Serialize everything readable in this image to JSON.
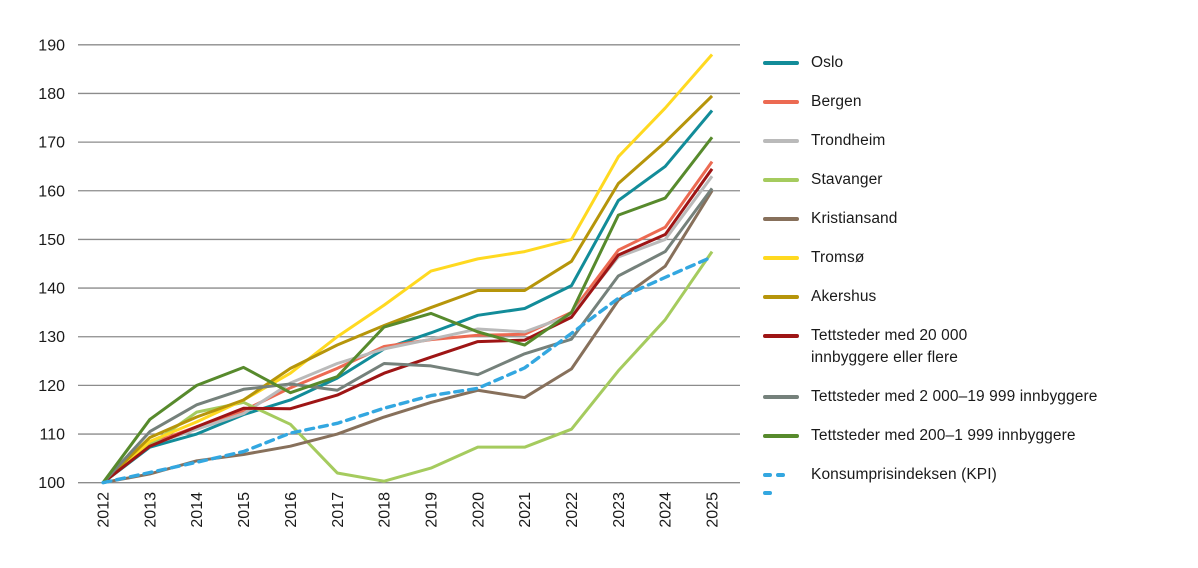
{
  "chart_data": {
    "type": "line",
    "title": "",
    "xlabel": "",
    "ylabel": "",
    "x_labels": [
      "2012",
      "2013",
      "2014",
      "2015",
      "2016",
      "2017",
      "2018",
      "2019",
      "2020",
      "2021",
      "2022",
      "2023",
      "2024",
      "2025"
    ],
    "ylim": [
      100,
      190
    ],
    "y_ticks": [
      "100",
      "110",
      "120",
      "130",
      "140",
      "150",
      "160",
      "170",
      "180",
      "190"
    ],
    "grid": "horizontal-only",
    "gridline_color": "#8c8c8c",
    "legend_position": "right",
    "series": [
      {
        "name": "Oslo",
        "color": "#128c99",
        "dashed": false,
        "label_lines": [
          "Oslo"
        ],
        "values": [
          100,
          107.3,
          110,
          114,
          117,
          121.5,
          127.5,
          130.8,
          134.4,
          135.8,
          140.5,
          158,
          165,
          176.5
        ]
      },
      {
        "name": "Bergen",
        "color": "#ec6a52",
        "dashed": false,
        "label_lines": [
          "Bergen"
        ],
        "values": [
          100,
          108,
          111.5,
          114.8,
          119.5,
          123.5,
          128,
          129.4,
          130.3,
          130.5,
          135,
          147.8,
          152.5,
          166
        ]
      },
      {
        "name": "Trondheim",
        "color": "#bababa",
        "dashed": false,
        "label_lines": [
          "Trondheim"
        ],
        "values": [
          100,
          107.7,
          111,
          114.2,
          120.5,
          124.5,
          127.5,
          129.5,
          131.6,
          131,
          134.5,
          146.4,
          150,
          163
        ]
      },
      {
        "name": "Stavanger",
        "color": "#a5cb5e",
        "dashed": false,
        "label_lines": [
          "Stavanger"
        ],
        "values": [
          100,
          107.7,
          114.5,
          116.5,
          112,
          102,
          100.3,
          103,
          107.3,
          107.3,
          111,
          123,
          133.5,
          147.5
        ]
      },
      {
        "name": "Kristiansand",
        "color": "#87705b",
        "dashed": false,
        "label_lines": [
          "Kristiansand"
        ],
        "values": [
          100,
          101.8,
          104.5,
          105.8,
          107.5,
          110,
          113.5,
          116.5,
          119,
          117.5,
          123.4,
          137.5,
          144.5,
          160
        ]
      },
      {
        "name": "Tromsø",
        "color": "#ffd920",
        "dashed": false,
        "label_lines": [
          "Tromsø"
        ],
        "values": [
          100,
          108.5,
          112.5,
          117,
          122.5,
          130,
          136.5,
          143.5,
          146,
          147.5,
          150,
          167,
          177,
          188
        ]
      },
      {
        "name": "Akershus",
        "color": "#b6950a",
        "dashed": false,
        "label_lines": [
          "Akershus"
        ],
        "values": [
          100,
          109.3,
          113.5,
          117,
          123.5,
          128.3,
          132.3,
          136,
          139.5,
          139.5,
          145.5,
          161.5,
          170,
          179.5
        ]
      },
      {
        "name": "Tettsteder med 20 000 innbyggere eller flere",
        "color": "#9e1515",
        "dashed": false,
        "label_lines": [
          "Tettsteder med 20 000",
          "innbyggere eller flere"
        ],
        "values": [
          100,
          107.5,
          111.5,
          115.3,
          115.2,
          118,
          122.5,
          125.8,
          129,
          129.3,
          134,
          146.8,
          151,
          164.5
        ]
      },
      {
        "name": "Tettsteder med 2 000–19 999 innbyggere",
        "color": "#75817b",
        "dashed": false,
        "label_lines": [
          "Tettsteder med 2 000–19 999 innbyggere"
        ],
        "values": [
          100,
          110.5,
          116,
          119.2,
          120.3,
          119,
          124.5,
          124,
          122.2,
          126.5,
          129.5,
          142.5,
          147.5,
          160.5
        ]
      },
      {
        "name": "Tettsteder med 200–1 999 innbyggere",
        "color": "#578a2c",
        "dashed": false,
        "label_lines": [
          "Tettsteder med 200–1 999 innbyggere"
        ],
        "values": [
          100,
          113,
          120,
          123.7,
          118.5,
          121.8,
          132,
          134.8,
          131,
          128.3,
          135,
          155,
          158.5,
          171
        ]
      },
      {
        "name": "Konsumprisindeksen (KPI)",
        "color": "#33a7e0",
        "dashed": true,
        "label_lines": [
          "Konsumprisindeksen (KPI)"
        ],
        "values": [
          100,
          102.1,
          104.2,
          106.4,
          110.2,
          112.2,
          115.3,
          117.9,
          119.4,
          123.6,
          130.7,
          137.9,
          142.2,
          146.4
        ]
      }
    ]
  }
}
